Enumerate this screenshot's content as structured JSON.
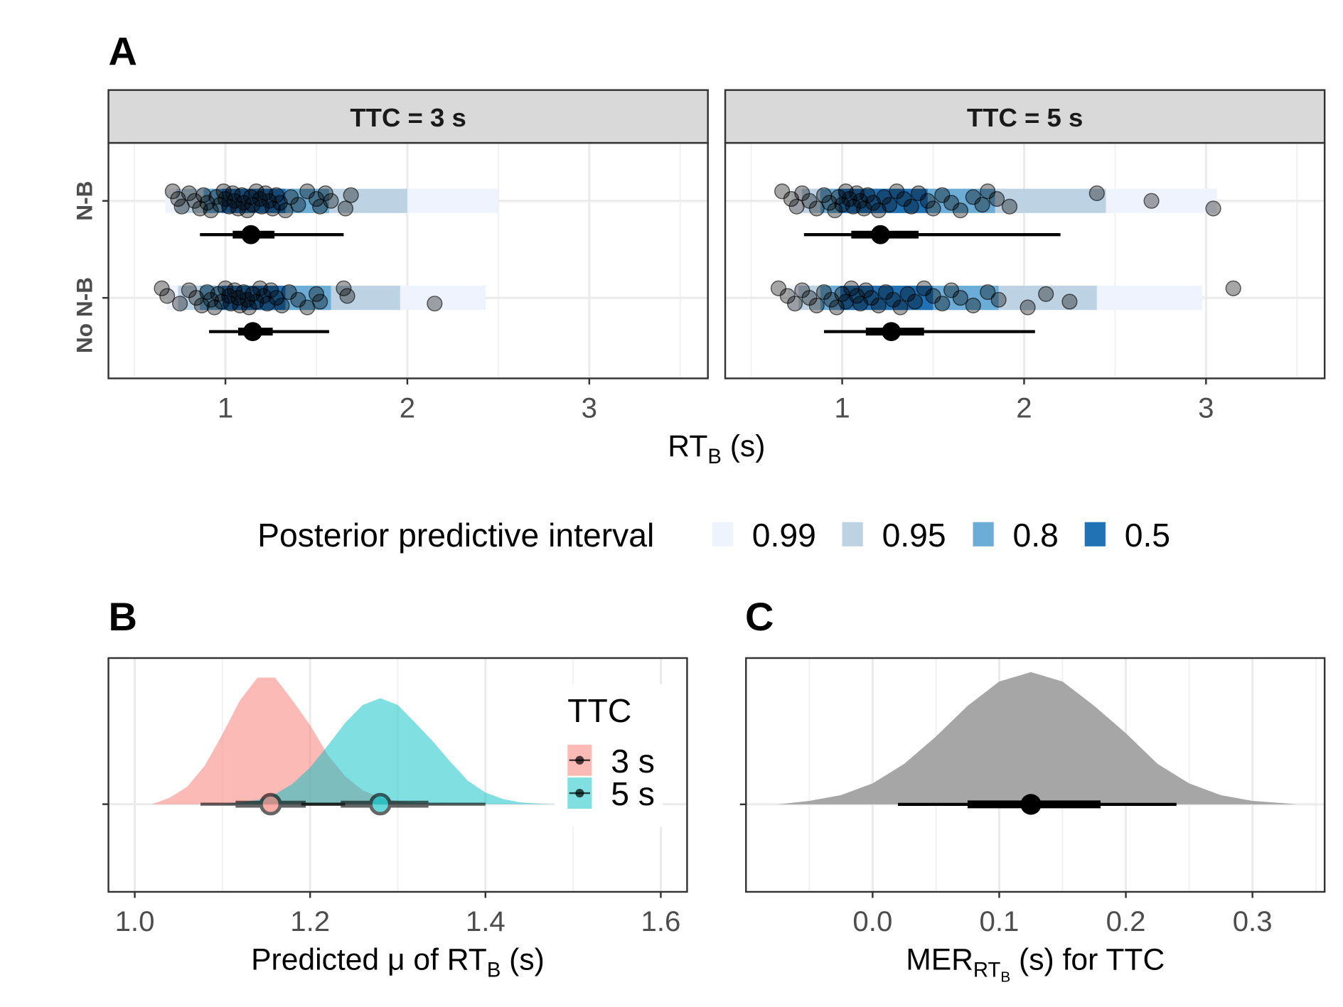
{
  "chart_data": [
    {
      "type": "interval",
      "panel_label": "A",
      "x_label": {
        "text": "RT",
        "sub": "B",
        "after": " (s)"
      },
      "xlim": [
        0.357,
        3.652
      ],
      "xticks": [
        1,
        2,
        3
      ],
      "grid": true,
      "categories": [
        "N-B",
        "No N-B"
      ],
      "legend_title": "Posterior predictive interval",
      "levels": [
        "0.99",
        "0.95",
        "0.8",
        "0.5"
      ],
      "level_colors": [
        "#eef3fd",
        "#bdd3e3",
        "#6badd6",
        "#2171b5"
      ],
      "panels": [
        {
          "title": "TTC = 3 s",
          "groups": [
            {
              "intervals": [
                [
                  0.67,
                  2.5
                ],
                [
                  0.73,
                  2.0
                ],
                [
                  0.88,
                  1.57
                ],
                [
                  0.98,
                  1.33
                ]
              ],
              "points": [
                0.71,
                0.74,
                0.76,
                0.8,
                0.83,
                0.86,
                0.88,
                0.9,
                0.92,
                0.95,
                0.97,
                0.99,
                1.0,
                1.02,
                1.04,
                1.05,
                1.07,
                1.09,
                1.1,
                1.12,
                1.14,
                1.15,
                1.17,
                1.19,
                1.2,
                1.22,
                1.24,
                1.26,
                1.28,
                1.3,
                1.33,
                1.36,
                1.4,
                1.45,
                1.5,
                1.52,
                1.55,
                1.58,
                1.66,
                1.69
              ],
              "center": 1.14,
              "inner": [
                1.04,
                1.27
              ],
              "outer": [
                0.86,
                1.65
              ]
            },
            {
              "intervals": [
                [
                  0.68,
                  2.43
                ],
                [
                  0.74,
                  1.96
                ],
                [
                  0.86,
                  1.58
                ],
                [
                  0.98,
                  1.33
                ]
              ],
              "points": [
                0.65,
                0.68,
                0.75,
                0.8,
                0.84,
                0.87,
                0.9,
                0.92,
                0.94,
                0.96,
                0.98,
                1.0,
                1.02,
                1.03,
                1.05,
                1.07,
                1.08,
                1.1,
                1.12,
                1.13,
                1.15,
                1.17,
                1.19,
                1.21,
                1.23,
                1.25,
                1.28,
                1.31,
                1.35,
                1.4,
                1.45,
                1.5,
                1.52,
                1.65,
                1.67,
                2.15
              ],
              "center": 1.15,
              "inner": [
                1.07,
                1.26
              ],
              "outer": [
                0.91,
                1.57
              ]
            }
          ]
        },
        {
          "title": "TTC = 5 s",
          "groups": [
            {
              "intervals": [
                [
                  0.72,
                  3.06
                ],
                [
                  0.78,
                  2.45
                ],
                [
                  0.88,
                  1.84
                ],
                [
                  0.98,
                  1.47
                ]
              ],
              "points": [
                0.67,
                0.72,
                0.75,
                0.78,
                0.82,
                0.86,
                0.9,
                0.93,
                0.96,
                0.98,
                1.0,
                1.02,
                1.04,
                1.06,
                1.08,
                1.1,
                1.12,
                1.14,
                1.17,
                1.2,
                1.23,
                1.26,
                1.3,
                1.34,
                1.38,
                1.42,
                1.47,
                1.5,
                1.55,
                1.6,
                1.65,
                1.72,
                1.77,
                1.8,
                1.85,
                1.92,
                2.4,
                2.7,
                3.04
              ],
              "center": 1.21,
              "inner": [
                1.05,
                1.42
              ],
              "outer": [
                0.79,
                2.2
              ]
            },
            {
              "intervals": [
                [
                  0.7,
                  2.98
                ],
                [
                  0.76,
                  2.4
                ],
                [
                  0.88,
                  1.86
                ],
                [
                  0.99,
                  1.5
                ]
              ],
              "points": [
                0.65,
                0.7,
                0.74,
                0.78,
                0.82,
                0.86,
                0.9,
                0.94,
                0.97,
                1.0,
                1.02,
                1.05,
                1.08,
                1.1,
                1.13,
                1.16,
                1.2,
                1.24,
                1.28,
                1.32,
                1.36,
                1.4,
                1.45,
                1.5,
                1.55,
                1.6,
                1.65,
                1.72,
                1.8,
                1.86,
                2.02,
                2.12,
                2.25,
                3.15
              ],
              "center": 1.27,
              "inner": [
                1.13,
                1.45
              ],
              "outer": [
                0.9,
                2.06
              ]
            }
          ]
        }
      ]
    },
    {
      "type": "density",
      "panel_label": "B",
      "x_label": {
        "text": "Predicted μ of RT",
        "sub": "B",
        "after": " (s)"
      },
      "xlim": [
        0.97,
        1.63
      ],
      "ylim": [
        -6,
        10
      ],
      "xticks": [
        {
          "value": 1,
          "label": "1.0"
        },
        1.2,
        1.4,
        1.6
      ],
      "grid": true,
      "legend_title": "TTC",
      "series": [
        {
          "name": "3 s",
          "color": "#f8766d",
          "x": [
            1.02,
            1.04,
            1.06,
            1.08,
            1.1,
            1.12,
            1.14,
            1.16,
            1.18,
            1.2,
            1.22,
            1.24,
            1.26,
            1.28,
            1.3,
            1.32,
            1.34,
            1.36
          ],
          "values": [
            0,
            0.45,
            1.2,
            2.64,
            4.79,
            7.1,
            8.66,
            8.66,
            7.1,
            5.4,
            3.4,
            1.9,
            0.95,
            0.45,
            0.2,
            0.08,
            0.03,
            0
          ],
          "center": 1.155,
          "inner": [
            1.115,
            1.195
          ],
          "outer": [
            1.075,
            1.24
          ]
        },
        {
          "name": "5 s",
          "color": "#00bfc4",
          "x": [
            1.1,
            1.12,
            1.14,
            1.16,
            1.18,
            1.2,
            1.22,
            1.24,
            1.26,
            1.28,
            1.3,
            1.32,
            1.34,
            1.36,
            1.38,
            1.4,
            1.42,
            1.44,
            1.46,
            1.48
          ],
          "values": [
            0,
            0.11,
            0.28,
            0.67,
            1.39,
            2.51,
            4.0,
            5.57,
            6.79,
            7.25,
            6.79,
            5.57,
            4.3,
            2.9,
            1.6,
            0.8,
            0.35,
            0.12,
            0.04,
            0
          ],
          "center": 1.28,
          "inner": [
            1.235,
            1.335
          ],
          "outer": [
            1.19,
            1.4
          ]
        }
      ]
    },
    {
      "type": "density",
      "panel_label": "C",
      "x_label": {
        "text": "MER",
        "sub": "RT",
        "subsub": "B",
        "after": " (s) for TTC"
      },
      "xlim": [
        -0.1,
        0.357
      ],
      "ylim": [
        -4.06,
        6.79
      ],
      "xticks": [
        {
          "value": 0,
          "label": "0.0"
        },
        0.1,
        0.2,
        0.3
      ],
      "grid": true,
      "series": [
        {
          "color": "#a6a6a6",
          "x": [
            -0.075,
            -0.05,
            -0.025,
            0,
            0.025,
            0.05,
            0.075,
            0.1,
            0.125,
            0.15,
            0.175,
            0.2,
            0.225,
            0.25,
            0.275,
            0.3,
            0.325,
            0.335
          ],
          "values": [
            0,
            0.16,
            0.43,
            0.97,
            1.88,
            3.15,
            4.57,
            5.7,
            6.14,
            5.7,
            4.57,
            3.3,
            1.88,
            0.97,
            0.43,
            0.16,
            0.05,
            0
          ],
          "center": 0.125,
          "inner": [
            0.075,
            0.18
          ],
          "outer": [
            0.02,
            0.24
          ]
        }
      ]
    }
  ]
}
